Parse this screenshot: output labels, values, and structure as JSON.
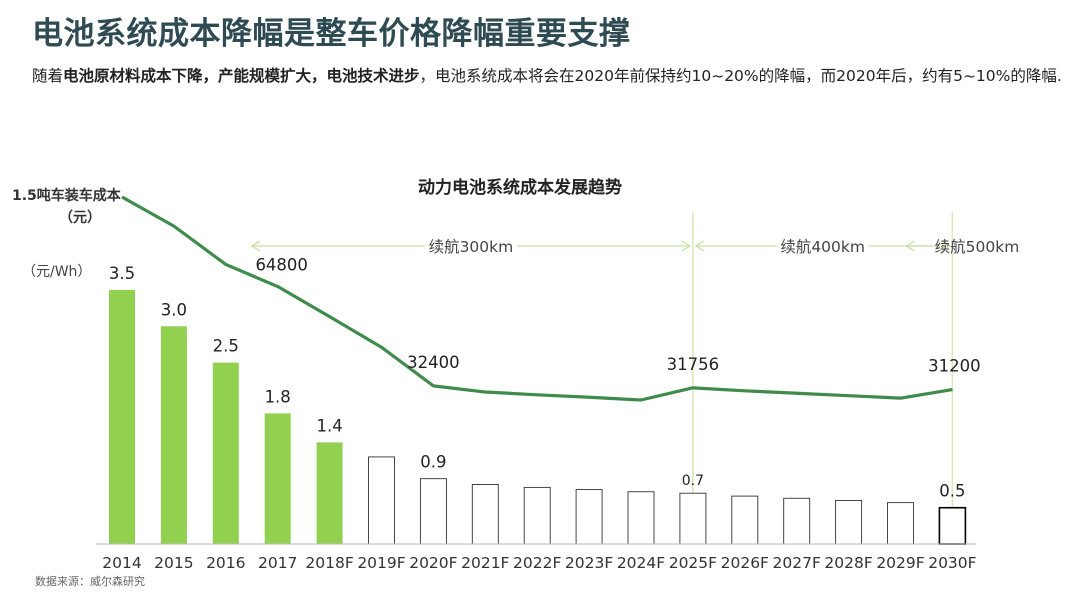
{
  "header": {
    "title": "电池系统成本降幅是整车价格降幅重要支撑",
    "subtitle_bold_1": "随着",
    "subtitle_bold_2": "电池原材料成本下降，产能规模扩大，电池技术进步",
    "subtitle_rest": "，电池系统成本将会在2020年前保持约10~20%的降幅，而2020年后，约有5~10%的降幅."
  },
  "source": "数据来源：威尔森研究",
  "chart_data": {
    "type": "bar",
    "title": "动力电池系统成本发展趋势",
    "categories": [
      "2014",
      "2015",
      "2016",
      "2017",
      "2018F",
      "2019F",
      "2020F",
      "2021F",
      "2022F",
      "2023F",
      "2024F",
      "2025F",
      "2026F",
      "2027F",
      "2028F",
      "2029F",
      "2030F"
    ],
    "series": [
      {
        "unit_label": "（元/Wh）",
        "values": [
          3.5,
          3.0,
          2.5,
          1.8,
          1.4,
          1.2,
          0.9,
          0.82,
          0.78,
          0.75,
          0.72,
          0.7,
          0.66,
          0.63,
          0.6,
          0.57,
          0.5
        ],
        "labels": [
          "3.5",
          "3.0",
          "2.5",
          "1.8",
          "1.4",
          "",
          "0.9",
          "",
          "",
          "",
          "",
          "0.7",
          "",
          "",
          "",
          "",
          "0.5"
        ],
        "color_actual": "#92d050",
        "color_forecast_border": "#000000"
      },
      {
        "unit_label": "1.5吨车装车成本（元）",
        "type": "line",
        "color": "#3e8b4b",
        "values": [
          94000,
          84500,
          72000,
          64800,
          55000,
          45000,
          32400,
          30400,
          29500,
          28700,
          27800,
          31756,
          30800,
          30000,
          29200,
          28400,
          31200
        ],
        "labels": [
          "",
          "",
          "",
          "64800",
          "",
          "",
          "32400",
          "",
          "",
          "",
          "",
          "31756",
          "",
          "",
          "",
          "",
          "31200"
        ]
      }
    ],
    "ranges": [
      {
        "label": "续航300km",
        "from": "2015",
        "to": "2025F"
      },
      {
        "label": "续航400km",
        "from": "2025F",
        "to": "2030F"
      },
      {
        "label": "续航500km",
        "from": "2030F",
        "to": "end"
      }
    ],
    "bar_ylim": [
      0,
      4.8
    ],
    "line_ylim": [
      0,
      130000
    ]
  }
}
